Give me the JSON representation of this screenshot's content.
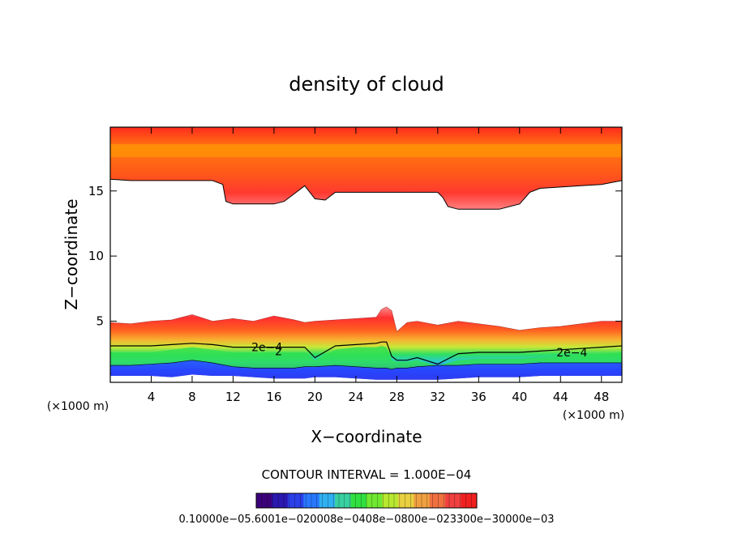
{
  "chart_data": {
    "type": "heatmap",
    "title": "density of cloud",
    "xlabel": "X−coordinate",
    "ylabel": "Z−coordinate",
    "x_unit_left": "(×1000 m)",
    "x_unit_right": "(×1000 m)",
    "xlim": [
      0,
      50
    ],
    "ylim": [
      0.3,
      19.9
    ],
    "xticks": [
      4,
      8,
      12,
      16,
      20,
      24,
      28,
      32,
      36,
      40,
      44,
      48
    ],
    "yticks": [
      5,
      10,
      15
    ],
    "grid": false,
    "contour_interval_label": "CONTOUR INTERVAL = 1.000E−04",
    "contour_labels": [
      {
        "text": "2e−4",
        "x": 13.8,
        "z": 3.0
      },
      {
        "text": "2",
        "x": 16.1,
        "z": 2.7
      },
      {
        "text": "2e−4",
        "x": 43.6,
        "z": 2.6
      }
    ],
    "upper_cloud": {
      "x": [
        0,
        2,
        4,
        6,
        8,
        10,
        11,
        11.3,
        12,
        14,
        16,
        17,
        18,
        19,
        20,
        21,
        22,
        24,
        26,
        28,
        30,
        32,
        32.5,
        33,
        34,
        36,
        38,
        40,
        41,
        42,
        44,
        46,
        48,
        50
      ],
      "bottom_z": [
        15.9,
        15.8,
        15.8,
        15.8,
        15.8,
        15.8,
        15.5,
        14.2,
        14.0,
        14.0,
        14.0,
        14.2,
        14.8,
        15.4,
        14.4,
        14.3,
        14.9,
        14.9,
        14.9,
        14.9,
        14.9,
        14.9,
        14.5,
        13.8,
        13.6,
        13.6,
        13.6,
        14.0,
        14.9,
        15.2,
        15.3,
        15.4,
        15.5,
        15.8
      ],
      "top_z": 19.9
    },
    "lower_cloud": {
      "x": [
        0,
        2,
        4,
        6,
        8,
        10,
        12,
        14,
        16,
        18,
        19,
        20,
        22,
        24,
        26,
        26.5,
        27,
        27.5,
        28,
        29,
        30,
        32,
        34,
        36,
        38,
        40,
        42,
        44,
        46,
        48,
        50
      ],
      "top_z": [
        4.9,
        4.8,
        5.0,
        5.1,
        5.5,
        5.0,
        5.2,
        5.0,
        5.4,
        5.1,
        4.9,
        5.0,
        5.1,
        5.2,
        5.3,
        5.9,
        6.1,
        5.8,
        4.2,
        4.9,
        5.0,
        4.7,
        5.0,
        4.8,
        4.6,
        4.3,
        4.5,
        4.6,
        4.8,
        5.0,
        5.0
      ],
      "contour_2e4_z": [
        3.1,
        3.1,
        3.1,
        3.2,
        3.3,
        3.2,
        3.0,
        3.0,
        3.0,
        3.0,
        3.0,
        2.2,
        3.1,
        3.2,
        3.3,
        3.4,
        3.4,
        2.3,
        2.0,
        2.0,
        2.2,
        1.7,
        2.5,
        2.6,
        2.6,
        2.6,
        2.7,
        2.8,
        2.9,
        3.0,
        3.1
      ],
      "green_top_z": [
        2.6,
        2.6,
        2.6,
        2.8,
        3.0,
        2.8,
        2.6,
        2.6,
        2.6,
        2.6,
        2.6,
        2.0,
        2.8,
        3.0,
        3.0,
        3.1,
        3.0,
        2.0,
        1.9,
        1.9,
        2.0,
        1.6,
        2.0,
        2.1,
        2.1,
        2.1,
        2.2,
        2.3,
        2.4,
        2.5,
        2.6
      ],
      "blue_top_z": [
        1.6,
        1.6,
        1.7,
        1.8,
        2.0,
        1.8,
        1.5,
        1.4,
        1.4,
        1.4,
        1.5,
        1.5,
        1.6,
        1.5,
        1.4,
        1.4,
        1.4,
        1.3,
        1.4,
        1.4,
        1.5,
        1.6,
        1.6,
        1.7,
        1.7,
        1.7,
        1.8,
        1.8,
        1.8,
        1.8,
        1.8
      ],
      "bottom_z": [
        0.8,
        0.8,
        0.8,
        0.7,
        0.9,
        0.8,
        0.8,
        0.7,
        0.6,
        0.6,
        0.6,
        0.7,
        0.7,
        0.6,
        0.5,
        0.5,
        0.5,
        0.5,
        0.5,
        0.5,
        0.5,
        0.5,
        0.6,
        0.7,
        0.7,
        0.7,
        0.8,
        0.8,
        0.8,
        0.8,
        0.8
      ]
    },
    "colorbar": {
      "label": "0.10000e−05.6001e−020008e−0408e−0800e−023300e−30000e−03",
      "colors": [
        "#3c007a",
        "#2a18b0",
        "#2c40e8",
        "#2878ff",
        "#30b0f0",
        "#38d0a0",
        "#30e040",
        "#70e830",
        "#b8e830",
        "#e8d040",
        "#f0a040",
        "#f07040",
        "#f04040",
        "#f02020"
      ]
    },
    "colors": {
      "cloud_core": "#ff2a1e",
      "cloud_edge": "#ff9090",
      "upper_core": "#ffb000",
      "green": "#2ee050",
      "blue": "#2848ff",
      "violet": "#5a10a0"
    }
  }
}
